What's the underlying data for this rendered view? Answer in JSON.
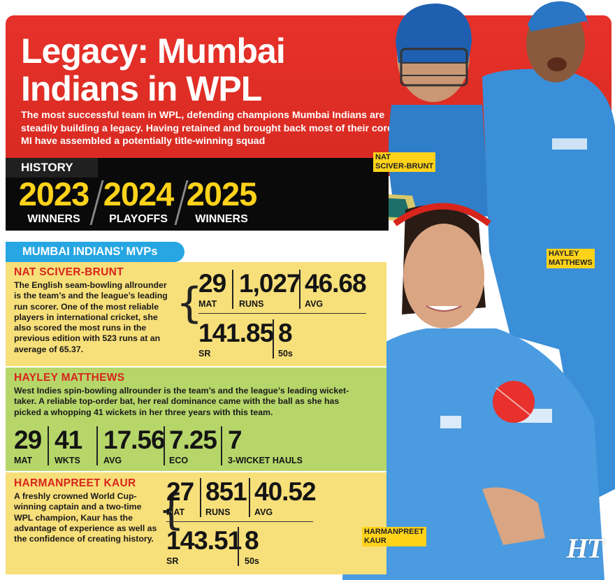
{
  "header": {
    "title_line1": "Legacy: Mumbai",
    "title_line2": "Indians in WPL",
    "subtitle": "The most successful team in WPL, defending champions Mumbai Indians are steadily building a legacy. Having retained and brought back most of their core, MI have assembled a potentially title-winning squad"
  },
  "history": {
    "label": "HISTORY",
    "items": [
      {
        "year": "2023",
        "result": "WINNERS"
      },
      {
        "year": "2024",
        "result": "PLAYOFFS"
      },
      {
        "year": "2025",
        "result": "WINNERS"
      }
    ]
  },
  "mvps_heading": "MUMBAI INDIANS’ MVPs",
  "players": {
    "nat": {
      "name": "NAT SCIVER-BRUNT",
      "desc": "The English seam-bowling allrounder is the team’s and the league’s leading run scorer. One of the most reliable players in international cricket, she also scored the most runs in the previous edition with 523 runs at an average of 65.37.",
      "stats": [
        {
          "value": "29",
          "label": "MAT"
        },
        {
          "value": "1,027",
          "label": "RUNS"
        },
        {
          "value": "46.68",
          "label": "AVG"
        },
        {
          "value": "141.85",
          "label": "SR"
        },
        {
          "value": "8",
          "label": "50s"
        }
      ]
    },
    "hayley": {
      "name": "HAYLEY MATTHEWS",
      "desc": "West Indies spin-bowling allrounder is the team’s and the league’s leading wicket-taker. A reliable top-order bat, her real dominance came with the ball as she has picked a whopping 41 wickets in her three years with this team.",
      "stats": [
        {
          "value": "29",
          "label": "MAT"
        },
        {
          "value": "41",
          "label": "WKTS"
        },
        {
          "value": "17.56",
          "label": "AVG"
        },
        {
          "value": "7.25",
          "label": "ECO"
        },
        {
          "value": "7",
          "label": "3-WICKET HAULS"
        }
      ]
    },
    "harman": {
      "name": "HARMANPREET KAUR",
      "desc": "A freshly crowned World Cup-winning captain and a two-time WPL champion,  Kaur has the advantage of experience as well as  the confidence of creating history.",
      "stats": [
        {
          "value": "27",
          "label": "MAT"
        },
        {
          "value": "851",
          "label": "RUNS"
        },
        {
          "value": "40.52",
          "label": "AVG"
        },
        {
          "value": "143.51",
          "label": "SR"
        },
        {
          "value": "8",
          "label": "50s"
        }
      ]
    }
  },
  "captions": {
    "nat": "NAT\nSCIVER-BRUNT",
    "hayley": "HAYLEY\nMATTHEWS",
    "harman": "HARMANPREET\nKAUR"
  },
  "logo": "HT",
  "colors": {
    "header_red": "#d72a21",
    "history_black": "#0a0a0a",
    "year_yellow": "#ffd31a",
    "mvp_blue": "#26a6e3",
    "section_yellow": "#f7df7a",
    "section_green": "#b6d66a",
    "name_red": "#d8251c",
    "jersey_blue": "#3a8fd8"
  }
}
